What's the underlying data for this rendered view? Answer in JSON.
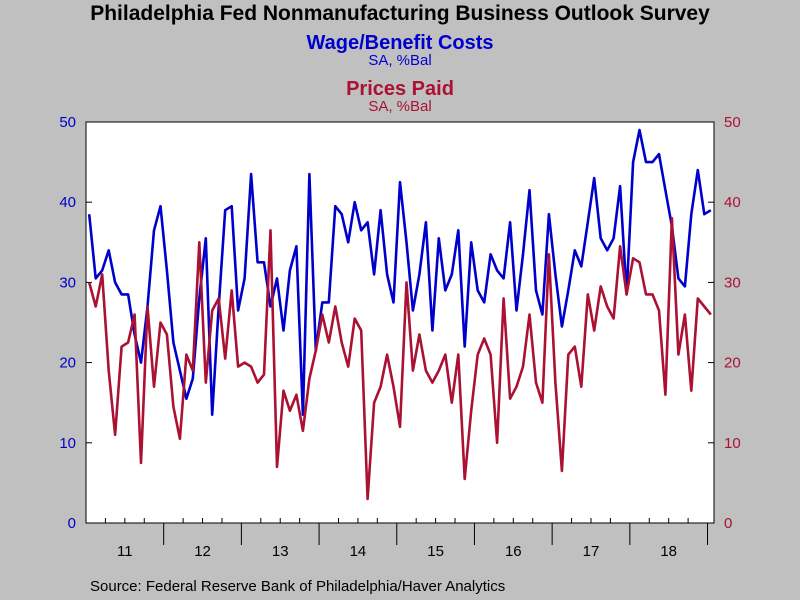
{
  "header": {
    "title": "Philadelphia Fed Nonmanufacturing Business Outlook Survey",
    "series1_title": "Wage/Benefit Costs",
    "series1_sub": "SA, %Bal",
    "series2_title": "Prices Paid",
    "series2_sub": "SA, %Bal"
  },
  "footer": {
    "source": "Source:  Federal Reserve Bank of Philadelphia/Haver Analytics"
  },
  "colors": {
    "wage": "#0000cc",
    "prices": "#aa1133",
    "plot_bg": "#ffffff",
    "page_bg": "#c0c0c0"
  },
  "chart_data": {
    "type": "line",
    "x_start": "2011-01",
    "frequency": "monthly",
    "ylim_left": [
      0,
      50
    ],
    "ylim_right": [
      0,
      50
    ],
    "yticks": [
      0,
      10,
      20,
      30,
      40,
      50
    ],
    "x_tick_labels": [
      "11",
      "12",
      "13",
      "14",
      "15",
      "16",
      "17",
      "18"
    ],
    "grid": false,
    "series": [
      {
        "name": "Wage/Benefit Costs",
        "axis": "left",
        "values": [
          38.5,
          30.5,
          31.5,
          34.0,
          30.0,
          28.5,
          28.5,
          23.5,
          20.0,
          27.0,
          36.5,
          39.5,
          31.5,
          22.5,
          19.0,
          15.5,
          18.0,
          28.0,
          35.5,
          13.5,
          27.0,
          39.0,
          39.5,
          26.5,
          30.5,
          43.5,
          32.5,
          32.5,
          27.0,
          30.5,
          24.0,
          31.5,
          34.5,
          13.5,
          43.5,
          21.5,
          27.5,
          27.5,
          39.5,
          38.5,
          35.0,
          40.0,
          36.5,
          37.5,
          31.0,
          39.0,
          31.0,
          27.5,
          42.5,
          35.0,
          26.5,
          31.0,
          37.5,
          24.0,
          35.5,
          29.0,
          31.0,
          36.5,
          22.0,
          35.0,
          29.0,
          27.5,
          33.5,
          31.5,
          30.5,
          37.5,
          26.5,
          33.5,
          41.5,
          29.0,
          26.0,
          38.5,
          31.0,
          24.5,
          29.0,
          34.0,
          32.0,
          37.5,
          43.0,
          35.5,
          34.0,
          35.5,
          42.0,
          28.5,
          45.0,
          49.0,
          45.0,
          45.0,
          46.0,
          41.5,
          37.0,
          30.5,
          29.5,
          38.5,
          44.0,
          38.5,
          39.0
        ]
      },
      {
        "name": "Prices Paid",
        "axis": "right",
        "values": [
          30.0,
          27.0,
          31.0,
          19.0,
          11.0,
          22.0,
          22.5,
          26.0,
          7.5,
          27.0,
          17.0,
          25.0,
          23.5,
          14.5,
          10.5,
          21.0,
          19.0,
          35.0,
          17.5,
          26.5,
          28.0,
          20.5,
          29.0,
          19.5,
          20.0,
          19.5,
          17.5,
          18.5,
          36.5,
          7.0,
          16.5,
          14.0,
          16.0,
          11.5,
          18.0,
          21.5,
          26.0,
          22.5,
          27.0,
          22.5,
          19.5,
          25.5,
          24.0,
          3.0,
          15.0,
          17.0,
          21.0,
          17.0,
          12.0,
          30.0,
          19.0,
          23.5,
          19.0,
          17.5,
          19.0,
          21.0,
          15.0,
          21.0,
          5.5,
          14.0,
          21.0,
          23.0,
          21.0,
          10.0,
          28.0,
          15.5,
          17.0,
          19.5,
          26.0,
          17.5,
          15.0,
          33.5,
          17.5,
          6.5,
          21.0,
          22.0,
          17.0,
          28.5,
          24.0,
          29.5,
          27.0,
          25.5,
          34.5,
          28.5,
          33.0,
          32.5,
          28.5,
          28.5,
          26.5,
          16.0,
          38.0,
          21.0,
          26.0,
          16.5,
          28.0,
          27.0,
          26.0
        ]
      }
    ]
  }
}
